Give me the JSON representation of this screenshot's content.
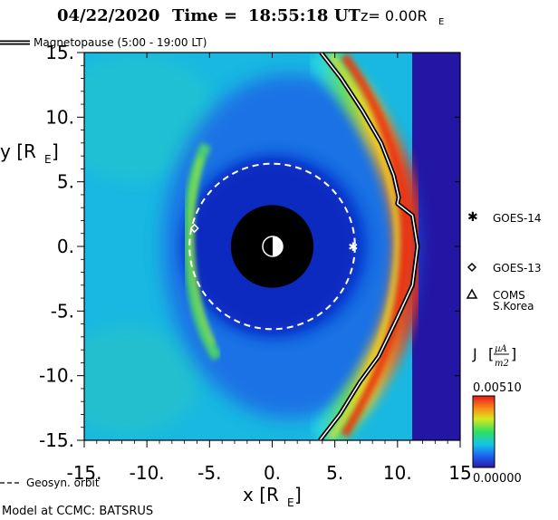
{
  "header": {
    "date": "04/22/2020",
    "time_label": "Time =",
    "time": "18:55:18 UT",
    "z_label": "z= 0.00R",
    "z_subscript": "E"
  },
  "legend": {
    "magnetopause": "Magnetopause (5:00 - 19:00 LT)",
    "geosyn": "Geosyn. orbit"
  },
  "footer": {
    "model": "Model at CCMC: BATSRUS"
  },
  "satellites": [
    {
      "name": "GOES-14",
      "symbol": "asterisk",
      "x": 6.5,
      "y": 0.0
    },
    {
      "name": "GOES-13",
      "symbol": "diamond",
      "x": -6.2,
      "y": 1.4
    },
    {
      "name": "COMS",
      "name2": "S.Korea",
      "symbol": "triangle"
    }
  ],
  "colorbar": {
    "label": "J",
    "unit_num": "µA",
    "unit_den": "m2",
    "max_label": "0.00510",
    "min_label": "0.00000",
    "max": 0.0051,
    "min": 0.0
  },
  "chart_data": {
    "type": "heatmap",
    "title": "04/22/2020 Time = 18:55:18 UT z= 0.00RE",
    "xlabel": "x [RE]",
    "ylabel": "y [RE]",
    "xlim": [
      -15,
      15
    ],
    "ylim": [
      -15,
      15
    ],
    "x_ticks": [
      "-15.",
      "-10.",
      "-5.",
      "0.",
      "5.",
      "10.",
      "15"
    ],
    "y_ticks": [
      "15.",
      "10.",
      "5.",
      "0.",
      "-5.",
      "-10.",
      "-15."
    ],
    "x_tick_values": [
      -15,
      -10,
      -5,
      0,
      5,
      10,
      15
    ],
    "y_tick_values": [
      15,
      10,
      5,
      0,
      -5,
      -10,
      -15
    ],
    "earth_radius": 3.3,
    "geosynchronous_orbit_radius": 6.6,
    "magnetopause": {
      "x": [
        3.9,
        5.5,
        7.2,
        8.7,
        9.7,
        10.1,
        10.0,
        11.2,
        11.6,
        11.2,
        10.0,
        8.5,
        7.0,
        5.4,
        3.8
      ],
      "y": [
        15.0,
        13.0,
        10.5,
        8.0,
        5.5,
        3.8,
        3.3,
        2.4,
        0.0,
        -3.0,
        -5.5,
        -8.5,
        -10.5,
        -13.0,
        -15.0
      ]
    },
    "colorscale": "rainbow",
    "value_range": [
      0.0,
      0.0051
    ]
  }
}
